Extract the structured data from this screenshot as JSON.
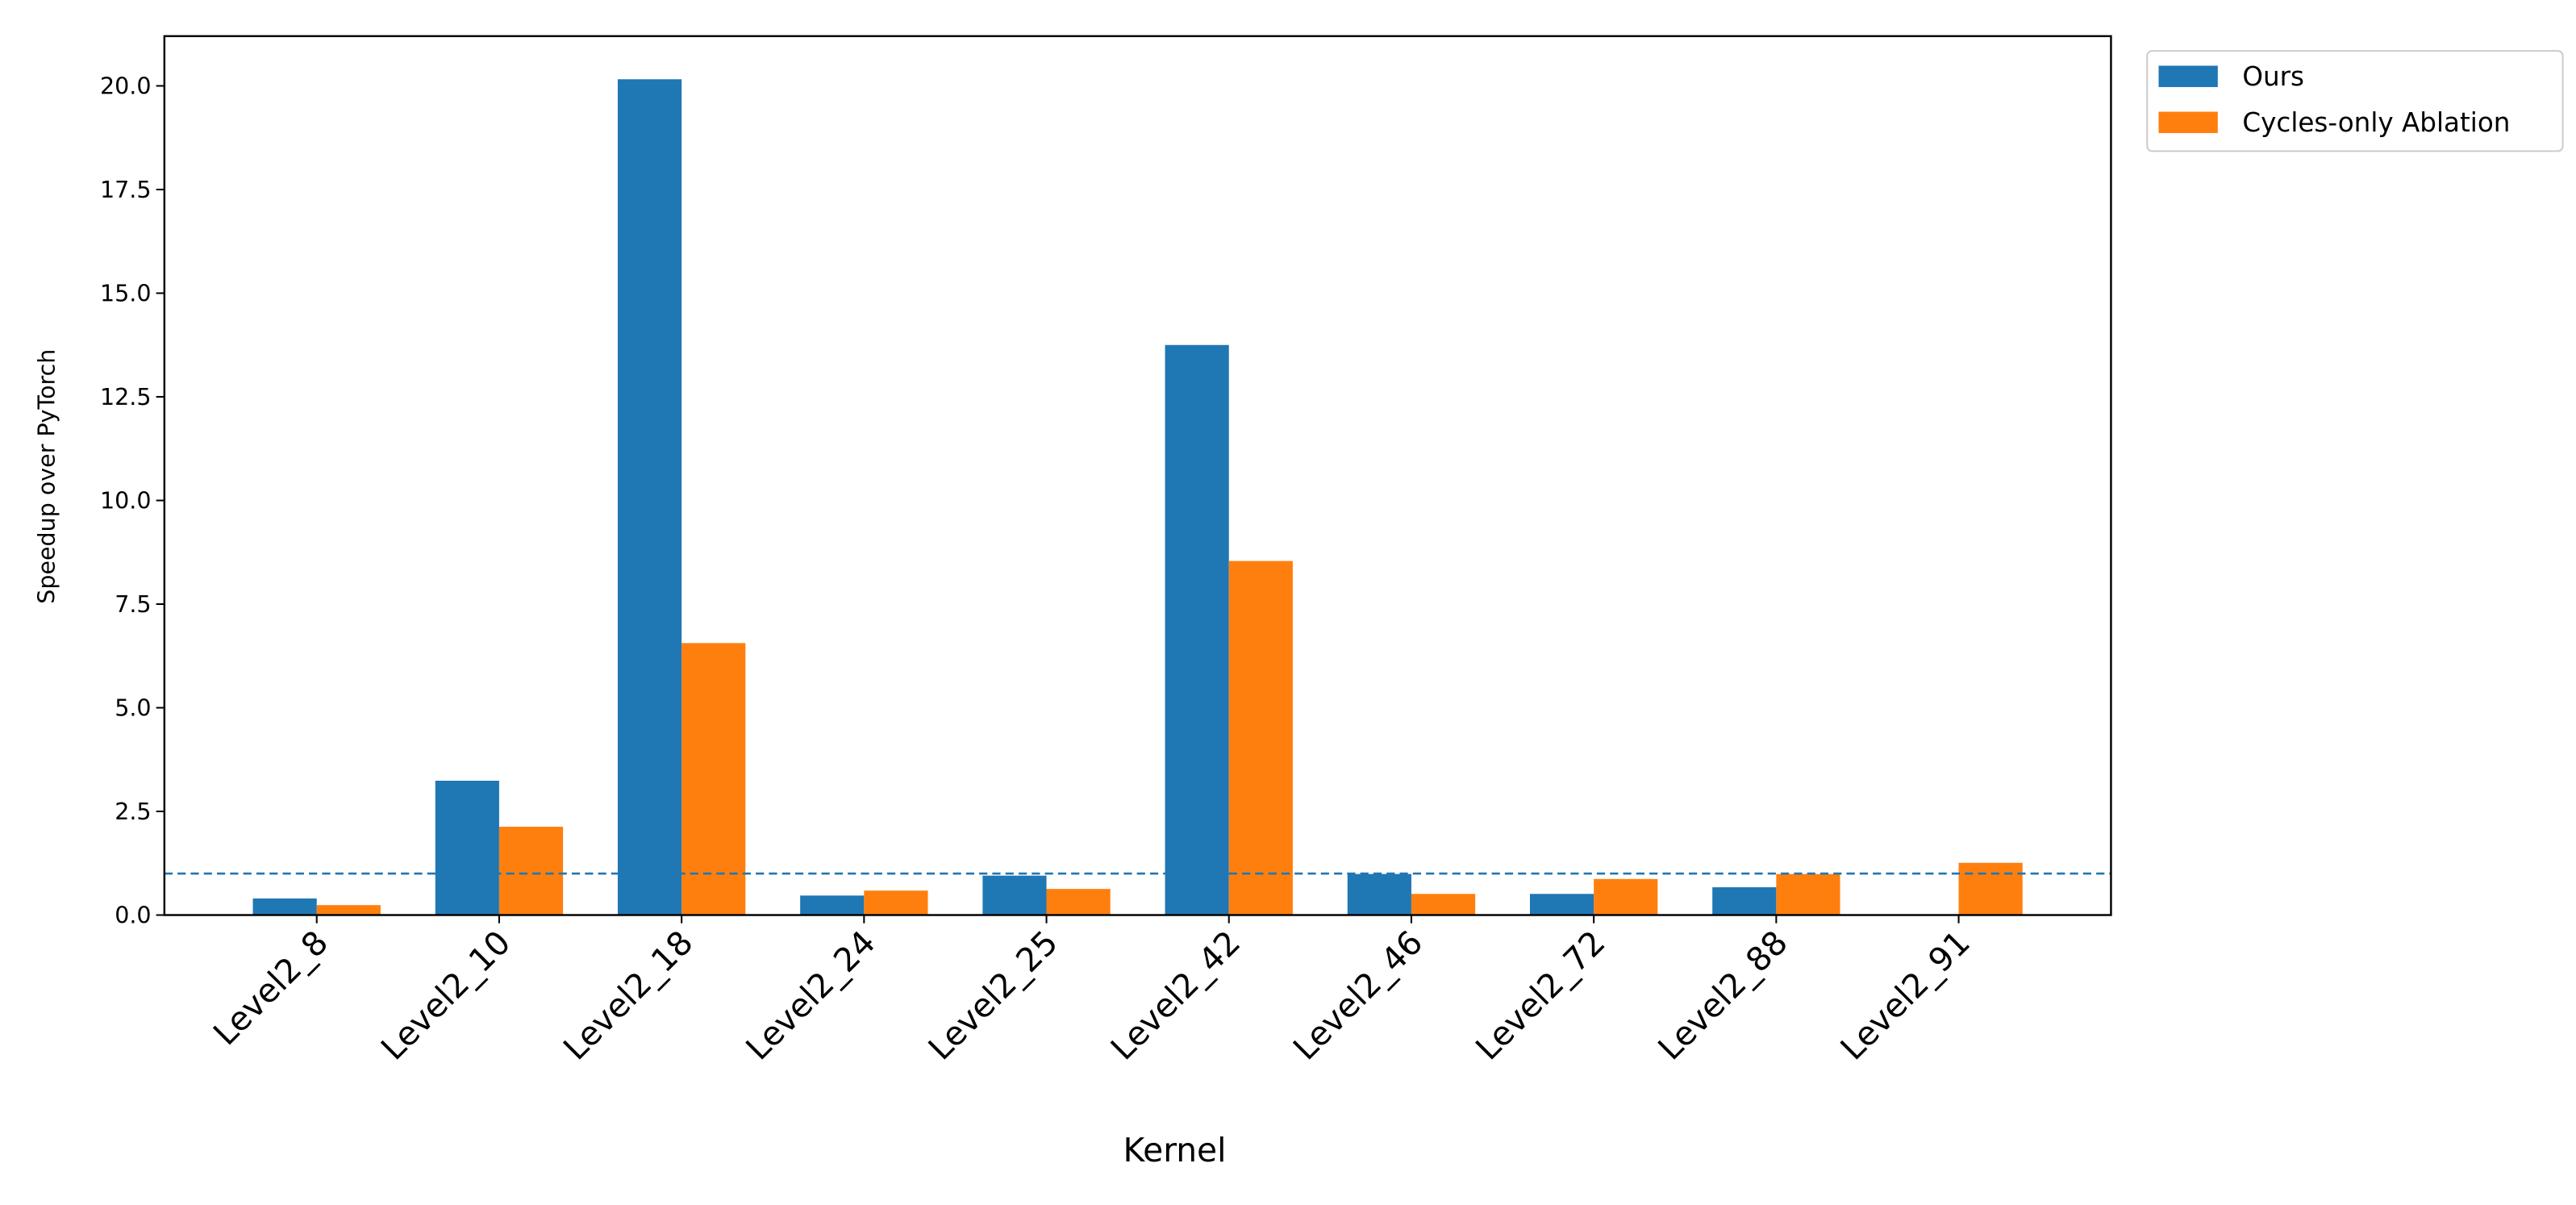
{
  "chart_data": {
    "type": "bar",
    "x_label": "Kernel",
    "y_label": "Speedup over PyTorch",
    "categories": [
      "Level2_8",
      "Level2_10",
      "Level2_18",
      "Level2_24",
      "Level2_25",
      "Level2_42",
      "Level2_46",
      "Level2_72",
      "Level2_88",
      "Level2_91"
    ],
    "series": [
      {
        "name": "Ours",
        "color": "#1f77b4",
        "values": [
          0.4,
          3.24,
          20.16,
          0.47,
          0.95,
          13.75,
          0.99,
          0.51,
          0.67,
          null
        ]
      },
      {
        "name": "Cycles-only Ablation",
        "color": "#ff7f0e",
        "values": [
          0.24,
          2.13,
          6.56,
          0.59,
          0.63,
          8.54,
          0.51,
          0.87,
          0.99,
          1.26
        ]
      }
    ],
    "reference_line": {
      "value": 1,
      "color": "#1f77b4",
      "style": "dashed"
    },
    "ylim": [
      0,
      21.2
    ],
    "yticks": [
      {
        "value": 0,
        "label": "0.0"
      },
      {
        "value": 2.5,
        "label": "2.5"
      },
      {
        "value": 5,
        "label": "5.0"
      },
      {
        "value": 7.5,
        "label": "7.5"
      },
      {
        "value": 10,
        "label": "10.0"
      },
      {
        "value": 12.5,
        "label": "12.5"
      },
      {
        "value": 15,
        "label": "15.0"
      },
      {
        "value": 17.5,
        "label": "17.5"
      },
      {
        "value": 20,
        "label": "20.0"
      }
    ],
    "grid": false,
    "legend": "outside-upper-right"
  }
}
